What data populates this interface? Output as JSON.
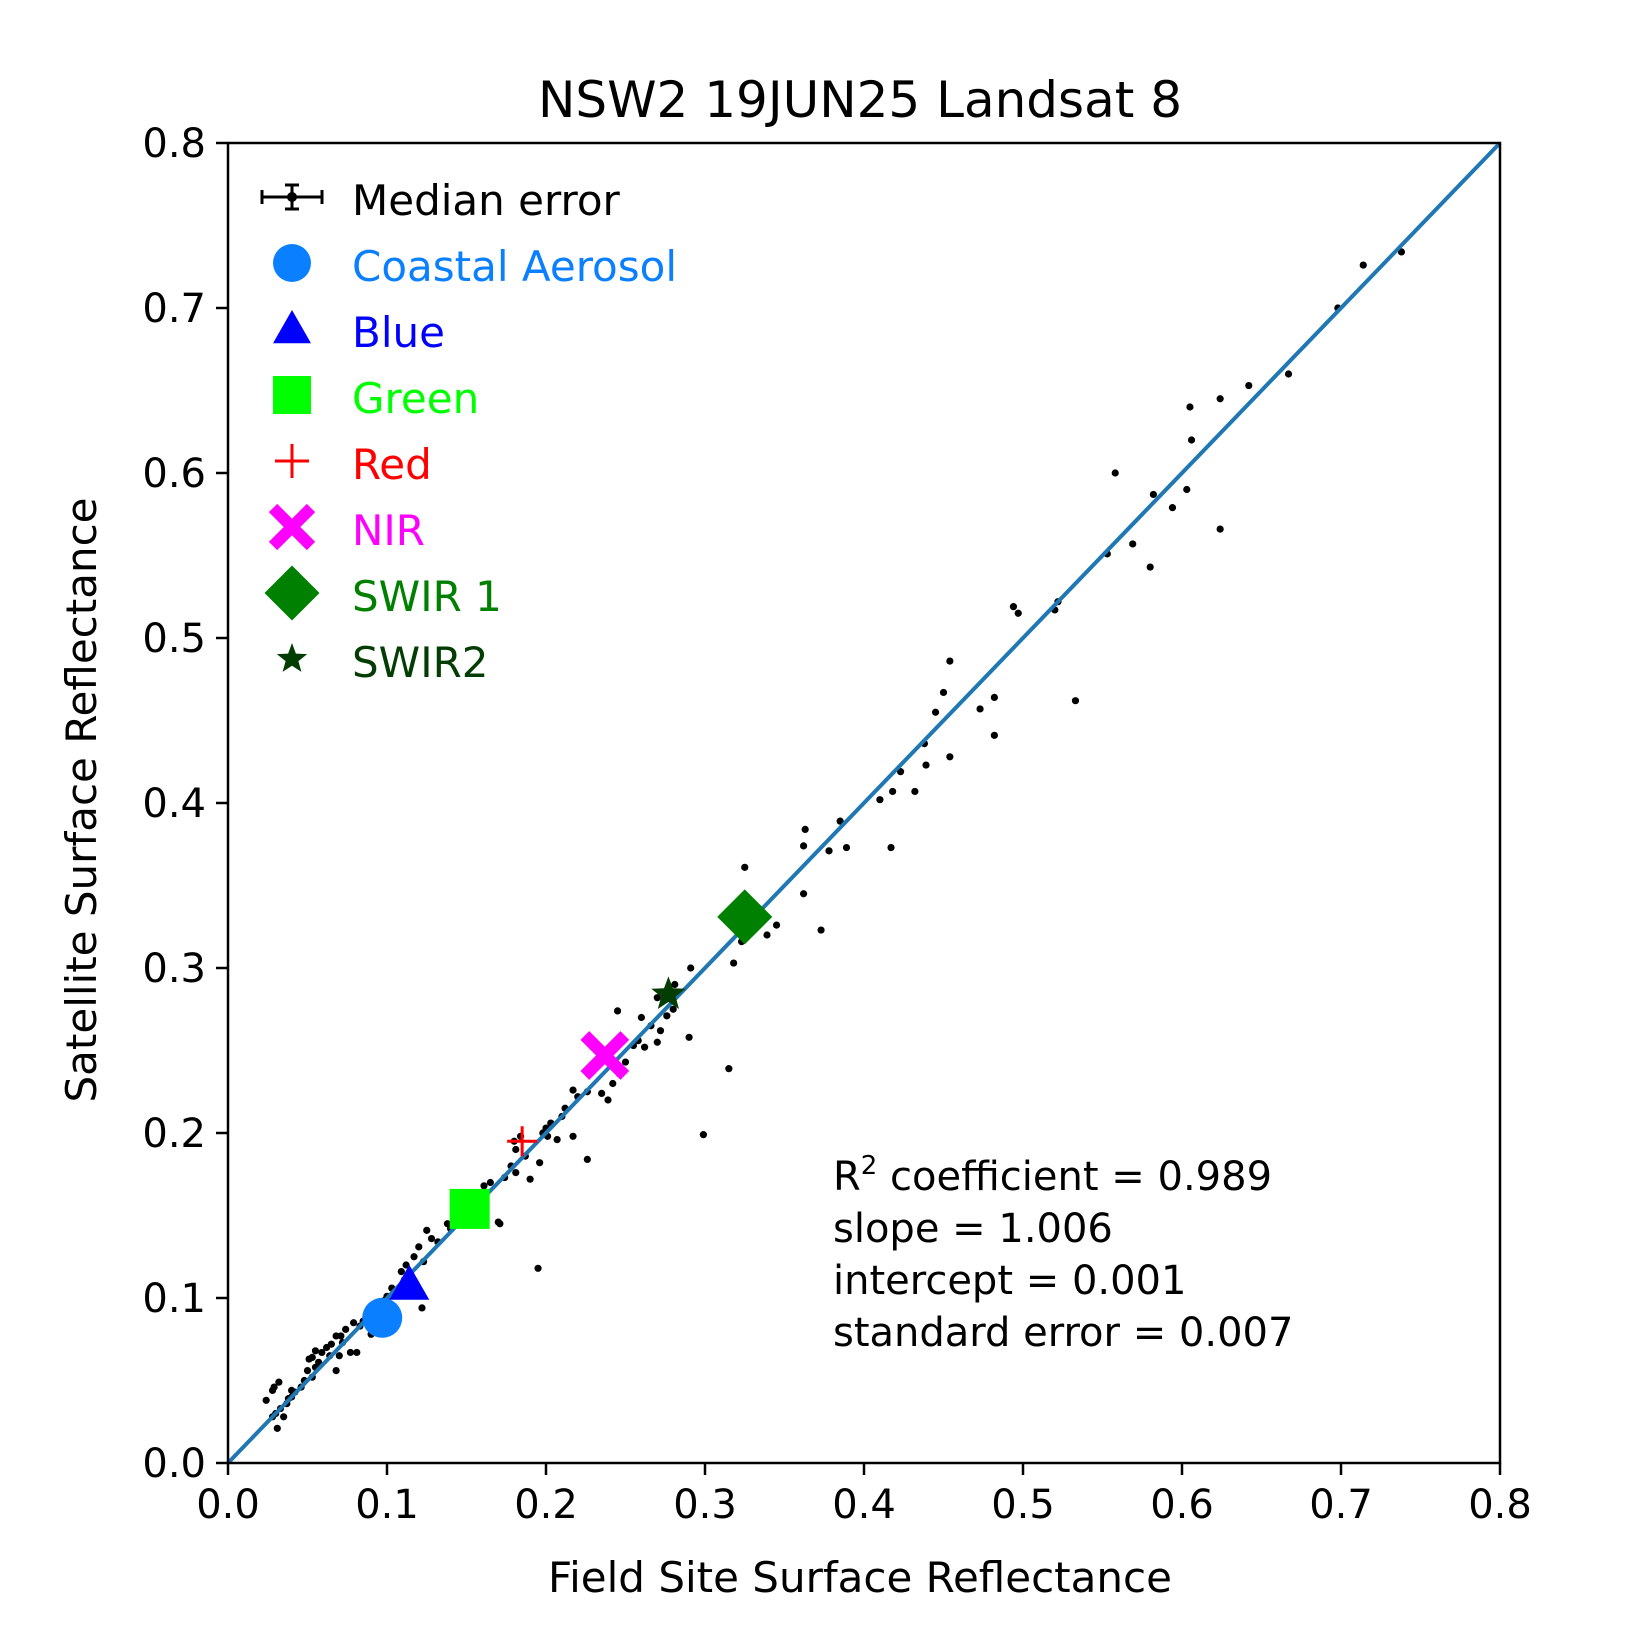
{
  "chart_data": {
    "type": "scatter",
    "title": "NSW2 19JUN25 Landsat 8",
    "xlabel": "Field Site Surface Reflectance",
    "ylabel": "Satellite Surface Reflectance",
    "xlim": [
      0.0,
      0.8
    ],
    "ylim": [
      0.0,
      0.8
    ],
    "xticks": [
      "0.0",
      "0.1",
      "0.2",
      "0.3",
      "0.4",
      "0.5",
      "0.6",
      "0.7",
      "0.8"
    ],
    "yticks": [
      "0.0",
      "0.1",
      "0.2",
      "0.3",
      "0.4",
      "0.5",
      "0.6",
      "0.7",
      "0.8"
    ],
    "grid": false,
    "legend_position": "top-left",
    "line": {
      "slope": 1.0,
      "intercept": 0.0,
      "color": "#1f77b4"
    },
    "legend": [
      {
        "label": "Median error",
        "color": "#000000",
        "marker": "errorbar"
      },
      {
        "label": "Coastal Aerosol",
        "color": "#0a7fff",
        "marker": "circle"
      },
      {
        "label": "Blue",
        "color": "#0000ff",
        "marker": "triangle"
      },
      {
        "label": "Green",
        "color": "#00ff00",
        "marker": "square"
      },
      {
        "label": "Red",
        "color": "#ff0000",
        "marker": "plus"
      },
      {
        "label": "NIR",
        "color": "#ff00ff",
        "marker": "x"
      },
      {
        "label": "SWIR 1",
        "color": "#008000",
        "marker": "diamond"
      },
      {
        "label": "SWIR2",
        "color": "#033d03",
        "marker": "star"
      }
    ],
    "band_medians": [
      {
        "band": "Coastal Aerosol",
        "x": 0.097,
        "y": 0.088
      },
      {
        "band": "Blue",
        "x": 0.114,
        "y": 0.108
      },
      {
        "band": "Green",
        "x": 0.152,
        "y": 0.154
      },
      {
        "band": "Red",
        "x": 0.185,
        "y": 0.195
      },
      {
        "band": "NIR",
        "x": 0.237,
        "y": 0.247
      },
      {
        "band": "SWIR 1",
        "x": 0.325,
        "y": 0.331
      },
      {
        "band": "SWIR2",
        "x": 0.277,
        "y": 0.284
      }
    ],
    "points": [
      [
        0.738,
        0.734
      ],
      [
        0.714,
        0.726
      ],
      [
        0.698,
        0.7
      ],
      [
        0.667,
        0.66
      ],
      [
        0.642,
        0.653
      ],
      [
        0.624,
        0.645
      ],
      [
        0.605,
        0.64
      ],
      [
        0.606,
        0.62
      ],
      [
        0.624,
        0.566
      ],
      [
        0.558,
        0.6
      ],
      [
        0.582,
        0.587
      ],
      [
        0.603,
        0.59
      ],
      [
        0.594,
        0.579
      ],
      [
        0.569,
        0.557
      ],
      [
        0.553,
        0.551
      ],
      [
        0.58,
        0.543
      ],
      [
        0.522,
        0.522
      ],
      [
        0.52,
        0.517
      ],
      [
        0.494,
        0.519
      ],
      [
        0.497,
        0.515
      ],
      [
        0.533,
        0.462
      ],
      [
        0.454,
        0.486
      ],
      [
        0.45,
        0.467
      ],
      [
        0.482,
        0.464
      ],
      [
        0.473,
        0.457
      ],
      [
        0.445,
        0.455
      ],
      [
        0.482,
        0.441
      ],
      [
        0.438,
        0.436
      ],
      [
        0.454,
        0.428
      ],
      [
        0.439,
        0.423
      ],
      [
        0.423,
        0.419
      ],
      [
        0.418,
        0.407
      ],
      [
        0.432,
        0.407
      ],
      [
        0.41,
        0.402
      ],
      [
        0.385,
        0.389
      ],
      [
        0.363,
        0.384
      ],
      [
        0.362,
        0.374
      ],
      [
        0.378,
        0.371
      ],
      [
        0.389,
        0.373
      ],
      [
        0.417,
        0.373
      ],
      [
        0.362,
        0.345
      ],
      [
        0.345,
        0.326
      ],
      [
        0.373,
        0.323
      ],
      [
        0.339,
        0.32
      ],
      [
        0.323,
        0.316
      ],
      [
        0.325,
        0.319
      ],
      [
        0.325,
        0.361
      ],
      [
        0.318,
        0.303
      ],
      [
        0.291,
        0.3
      ],
      [
        0.281,
        0.29
      ],
      [
        0.27,
        0.282
      ],
      [
        0.28,
        0.275
      ],
      [
        0.276,
        0.271
      ],
      [
        0.266,
        0.265
      ],
      [
        0.26,
        0.27
      ],
      [
        0.245,
        0.274
      ],
      [
        0.272,
        0.262
      ],
      [
        0.262,
        0.252
      ],
      [
        0.29,
        0.258
      ],
      [
        0.27,
        0.255
      ],
      [
        0.255,
        0.253
      ],
      [
        0.258,
        0.256
      ],
      [
        0.25,
        0.243
      ],
      [
        0.232,
        0.241
      ],
      [
        0.246,
        0.236
      ],
      [
        0.242,
        0.23
      ],
      [
        0.235,
        0.224
      ],
      [
        0.226,
        0.225
      ],
      [
        0.239,
        0.22
      ],
      [
        0.217,
        0.226
      ],
      [
        0.22,
        0.222
      ],
      [
        0.212,
        0.215
      ],
      [
        0.21,
        0.21
      ],
      [
        0.203,
        0.206
      ],
      [
        0.2,
        0.203
      ],
      [
        0.201,
        0.198
      ],
      [
        0.198,
        0.2
      ],
      [
        0.207,
        0.196
      ],
      [
        0.217,
        0.198
      ],
      [
        0.184,
        0.198
      ],
      [
        0.18,
        0.195
      ],
      [
        0.181,
        0.19
      ],
      [
        0.187,
        0.186
      ],
      [
        0.178,
        0.18
      ],
      [
        0.181,
        0.176
      ],
      [
        0.174,
        0.173
      ],
      [
        0.19,
        0.172
      ],
      [
        0.165,
        0.17
      ],
      [
        0.161,
        0.168
      ],
      [
        0.16,
        0.164
      ],
      [
        0.157,
        0.16
      ],
      [
        0.15,
        0.159
      ],
      [
        0.149,
        0.155
      ],
      [
        0.144,
        0.148
      ],
      [
        0.138,
        0.145
      ],
      [
        0.14,
        0.142
      ],
      [
        0.171,
        0.145
      ],
      [
        0.128,
        0.136
      ],
      [
        0.125,
        0.141
      ],
      [
        0.132,
        0.134
      ],
      [
        0.12,
        0.131
      ],
      [
        0.117,
        0.125
      ],
      [
        0.112,
        0.12
      ],
      [
        0.123,
        0.122
      ],
      [
        0.109,
        0.116
      ],
      [
        0.111,
        0.111
      ],
      [
        0.103,
        0.106
      ],
      [
        0.1,
        0.101
      ],
      [
        0.107,
        0.105
      ],
      [
        0.122,
        0.094
      ],
      [
        0.099,
        0.099
      ],
      [
        0.095,
        0.094
      ],
      [
        0.088,
        0.09
      ],
      [
        0.085,
        0.086
      ],
      [
        0.083,
        0.083
      ],
      [
        0.079,
        0.085
      ],
      [
        0.074,
        0.081
      ],
      [
        0.071,
        0.077
      ],
      [
        0.068,
        0.077
      ],
      [
        0.072,
        0.073
      ],
      [
        0.065,
        0.072
      ],
      [
        0.062,
        0.07
      ],
      [
        0.059,
        0.067
      ],
      [
        0.055,
        0.068
      ],
      [
        0.053,
        0.064
      ],
      [
        0.051,
        0.063
      ],
      [
        0.057,
        0.061
      ],
      [
        0.055,
        0.058
      ],
      [
        0.05,
        0.056
      ],
      [
        0.053,
        0.052
      ],
      [
        0.048,
        0.05
      ],
      [
        0.046,
        0.046
      ],
      [
        0.042,
        0.043
      ],
      [
        0.04,
        0.04
      ],
      [
        0.037,
        0.036
      ],
      [
        0.033,
        0.033
      ],
      [
        0.03,
        0.03
      ],
      [
        0.028,
        0.028
      ],
      [
        0.035,
        0.028
      ],
      [
        0.031,
        0.021
      ],
      [
        0.024,
        0.038
      ],
      [
        0.028,
        0.044
      ],
      [
        0.032,
        0.049
      ],
      [
        0.029,
        0.046
      ],
      [
        0.04,
        0.044
      ],
      [
        0.038,
        0.039
      ],
      [
        0.064,
        0.065
      ],
      [
        0.07,
        0.065
      ],
      [
        0.068,
        0.056
      ],
      [
        0.077,
        0.067
      ],
      [
        0.081,
        0.067
      ],
      [
        0.09,
        0.078
      ],
      [
        0.092,
        0.083
      ],
      [
        0.195,
        0.118
      ],
      [
        0.299,
        0.199
      ],
      [
        0.315,
        0.239
      ],
      [
        0.196,
        0.182
      ],
      [
        0.226,
        0.184
      ],
      [
        0.162,
        0.153
      ],
      [
        0.17,
        0.146
      ]
    ],
    "annotation": {
      "r2_label": "R",
      "r2_sup": "2",
      "r2_text": " coefficient = 0.989",
      "slope": "slope = 1.006",
      "intercept": "intercept = 0.001",
      "std_error": "standard error = 0.007"
    }
  }
}
